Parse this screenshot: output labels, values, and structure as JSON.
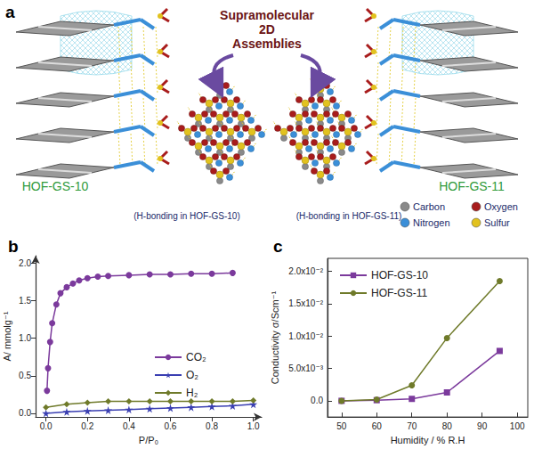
{
  "diagram": {
    "label": "a",
    "center_text": [
      "Supramolecular",
      "2D",
      "Assemblies"
    ],
    "structures": [
      {
        "name": "HOF-GS-10",
        "caption": "(H-bonding in HOF-GS-10)"
      },
      {
        "name": "HOF-GS-11",
        "caption": "(H-bonding in HOF-GS-11)"
      }
    ],
    "legend": [
      {
        "label": "Carbon",
        "color": "#8a8a8a"
      },
      {
        "label": "Oxygen",
        "color": "#a81c1c"
      },
      {
        "label": "Nitrogen",
        "color": "#3b8fd8"
      },
      {
        "label": "Sulfur",
        "color": "#e2c21e"
      }
    ]
  },
  "chart_data": [
    {
      "type": "line",
      "title": "b",
      "x_label": "P/P₀",
      "y_label": "A/ mmolg⁻¹",
      "xlim": [
        -0.05,
        1.04
      ],
      "xticks": [
        {
          "value": 0,
          "label": "0.0"
        },
        0.2,
        0.4,
        0.6,
        0.8,
        {
          "value": 1,
          "label": "1.0"
        }
      ],
      "ylim": [
        -0.05,
        2.1
      ],
      "yticks": [
        {
          "value": 0,
          "label": "0.0"
        },
        0.5,
        {
          "value": 1,
          "label": "1.0"
        },
        1.5,
        {
          "value": 2,
          "label": "2.0"
        }
      ],
      "grid": false,
      "legend": "right",
      "series": [
        {
          "name": "CO₂",
          "color": "#7b3a9c",
          "marker": "circle",
          "x": [
            0.005,
            0.01,
            0.02,
            0.03,
            0.05,
            0.07,
            0.1,
            0.13,
            0.16,
            0.2,
            0.25,
            0.3,
            0.4,
            0.5,
            0.6,
            0.7,
            0.8,
            0.9
          ],
          "values": [
            0.3,
            0.6,
            0.95,
            1.2,
            1.45,
            1.6,
            1.68,
            1.73,
            1.77,
            1.8,
            1.82,
            1.83,
            1.84,
            1.85,
            1.85,
            1.86,
            1.86,
            1.87
          ]
        },
        {
          "name": "O₂",
          "color": "#3a3fb2",
          "marker": "star",
          "x": [
            0.0,
            0.1,
            0.2,
            0.3,
            0.4,
            0.5,
            0.6,
            0.7,
            0.8,
            0.9,
            1.0
          ],
          "values": [
            0.0,
            0.02,
            0.03,
            0.04,
            0.05,
            0.06,
            0.07,
            0.08,
            0.09,
            0.1,
            0.12
          ]
        },
        {
          "name": "H₂",
          "color": "#6f7a2a",
          "marker": "diamond",
          "x": [
            0.0,
            0.1,
            0.2,
            0.3,
            0.4,
            0.5,
            0.6,
            0.7,
            0.8,
            0.9,
            1.0
          ],
          "values": [
            0.08,
            0.12,
            0.14,
            0.16,
            0.16,
            0.16,
            0.16,
            0.16,
            0.16,
            0.16,
            0.17
          ]
        }
      ]
    },
    {
      "type": "line",
      "title": "c",
      "x_label": "Humidity / % R.H",
      "y_label": "Conductivity σ/Scm⁻¹",
      "xlim": [
        46,
        103
      ],
      "xticks": [
        50,
        60,
        70,
        80,
        90,
        100
      ],
      "ylim": [
        -0.0025,
        0.022
      ],
      "yticks": [
        {
          "value": 0,
          "label": "0.0"
        },
        {
          "value": 0.005,
          "label": "5.0x10⁻³"
        },
        {
          "value": 0.01,
          "label": "1.0x10⁻²"
        },
        {
          "value": 0.015,
          "label": "1.5x10⁻²"
        },
        {
          "value": 0.02,
          "label": "2.0x10⁻²"
        }
      ],
      "grid": false,
      "legend": "upper left",
      "series": [
        {
          "name": "HOF-GS-10",
          "color": "#7b3a9c",
          "marker": "square",
          "x": [
            50,
            60,
            70,
            80,
            95
          ],
          "values": [
            0.0,
            0.0001,
            0.0003,
            0.0013,
            0.0077
          ]
        },
        {
          "name": "HOF-GS-11",
          "color": "#6f7a2a",
          "marker": "circle",
          "x": [
            50,
            60,
            70,
            80,
            95
          ],
          "values": [
            0.0,
            0.0002,
            0.0024,
            0.0097,
            0.0185
          ]
        }
      ]
    }
  ]
}
